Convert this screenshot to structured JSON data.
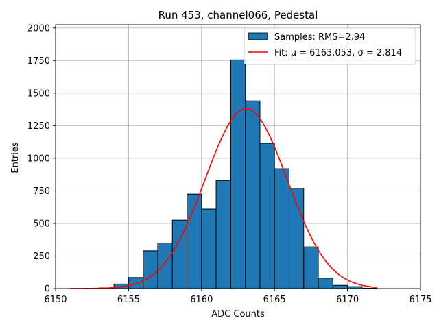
{
  "chart_data": {
    "type": "bar",
    "title": "Run 453, channel066, Pedestal",
    "xlabel": "ADC Counts",
    "ylabel": "Entries",
    "xlim": [
      6150,
      6175
    ],
    "ylim": [
      0,
      2025
    ],
    "xticks": [
      6150,
      6155,
      6160,
      6165,
      6170,
      6175
    ],
    "yticks": [
      0,
      250,
      500,
      750,
      1000,
      1250,
      1500,
      1750,
      2000
    ],
    "grid": true,
    "legend_position": "top-right",
    "colors": {
      "bars": "#1f77b4",
      "fit": "#ff0000",
      "edge": "#000000",
      "grid": "#b0b0b0"
    },
    "histogram": {
      "name": "Samples: RMS=2.94",
      "bin_width": 1,
      "bins": [
        {
          "x0": 6152,
          "count": 2
        },
        {
          "x0": 6153,
          "count": 5
        },
        {
          "x0": 6154,
          "count": 35
        },
        {
          "x0": 6155,
          "count": 85
        },
        {
          "x0": 6156,
          "count": 290
        },
        {
          "x0": 6157,
          "count": 350
        },
        {
          "x0": 6158,
          "count": 525
        },
        {
          "x0": 6159,
          "count": 725
        },
        {
          "x0": 6160,
          "count": 610
        },
        {
          "x0": 6161,
          "count": 830
        },
        {
          "x0": 6162,
          "count": 1755
        },
        {
          "x0": 6163,
          "count": 1440
        },
        {
          "x0": 6164,
          "count": 1115
        },
        {
          "x0": 6165,
          "count": 920
        },
        {
          "x0": 6166,
          "count": 770
        },
        {
          "x0": 6167,
          "count": 320
        },
        {
          "x0": 6168,
          "count": 80
        },
        {
          "x0": 6169,
          "count": 25
        },
        {
          "x0": 6170,
          "count": 15
        },
        {
          "x0": 6171,
          "count": 3
        }
      ]
    },
    "fit": {
      "name": "Fit: μ = 6163.053, σ = 2.814",
      "mu": 6163.053,
      "sigma": 2.814,
      "amplitude": 1380,
      "x_range": [
        6151,
        6172
      ]
    }
  }
}
